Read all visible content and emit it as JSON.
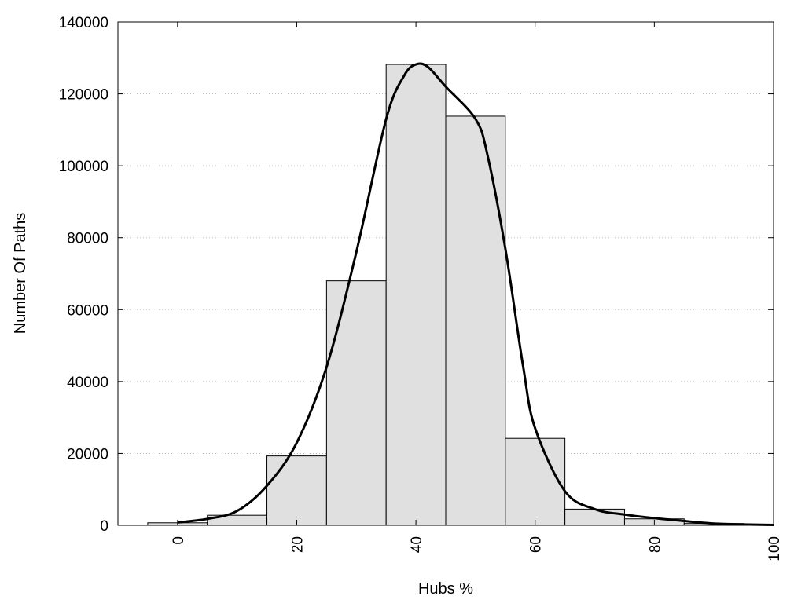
{
  "chart_data": {
    "type": "bar",
    "xlabel": "Hubs %",
    "ylabel": "Number Of Paths",
    "xlim": [
      -10,
      100
    ],
    "ylim": [
      0,
      140000
    ],
    "x_ticks": [
      0,
      20,
      40,
      60,
      80,
      100
    ],
    "y_ticks": [
      0,
      20000,
      40000,
      60000,
      80000,
      100000,
      120000,
      140000
    ],
    "grid": "y-dotted",
    "bin_width": 10,
    "bins": [
      {
        "center": 0,
        "value": 700
      },
      {
        "center": 10,
        "value": 2800
      },
      {
        "center": 20,
        "value": 19300
      },
      {
        "center": 30,
        "value": 68000
      },
      {
        "center": 40,
        "value": 128200
      },
      {
        "center": 50,
        "value": 113800
      },
      {
        "center": 60,
        "value": 24200
      },
      {
        "center": 70,
        "value": 4500
      },
      {
        "center": 80,
        "value": 1800
      },
      {
        "center": 90,
        "value": 500
      }
    ],
    "curve": {
      "x": [
        0,
        5,
        10,
        15,
        20,
        25,
        30,
        35,
        38,
        40,
        42,
        45,
        50,
        52,
        55,
        58,
        60,
        65,
        70,
        75,
        80,
        85,
        90,
        95,
        100
      ],
      "y": [
        800,
        1800,
        4000,
        11000,
        23000,
        44000,
        76000,
        113000,
        125000,
        128200,
        127500,
        122000,
        113000,
        103000,
        77000,
        44000,
        27000,
        9500,
        4500,
        3000,
        2000,
        1200,
        500,
        250,
        100
      ]
    },
    "colors": {
      "bar_fill": "#e0e0e0",
      "bar_stroke": "#000000",
      "curve": "#000000",
      "grid": "#b0b0b0"
    }
  }
}
